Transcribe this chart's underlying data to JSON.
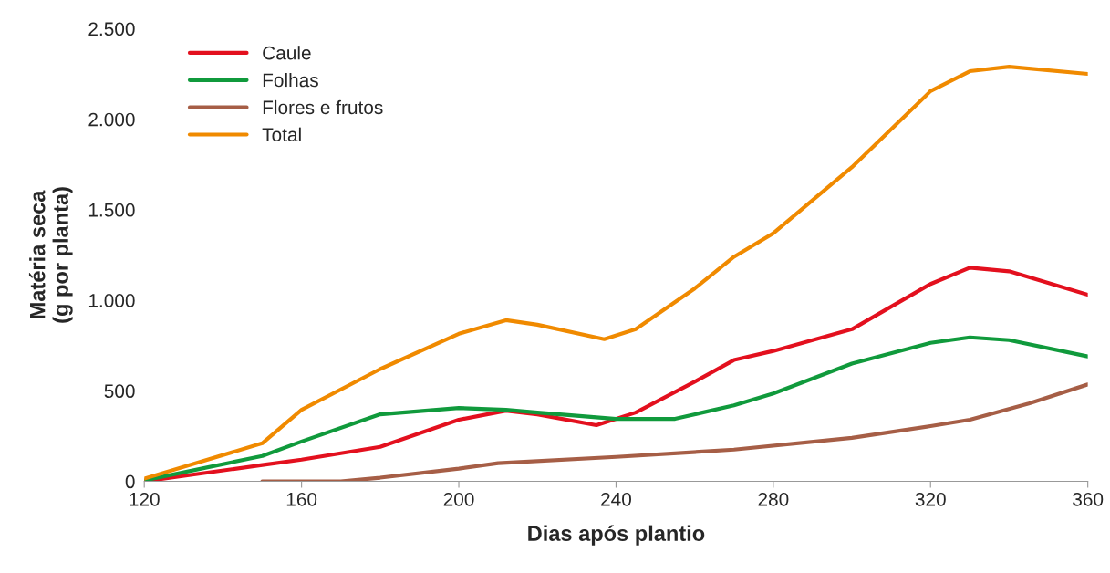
{
  "chart_data": {
    "type": "line",
    "xlabel": "Dias após plantio",
    "ylabel": "Matéria seca\n(g por planta)",
    "xlim": [
      120,
      360
    ],
    "xticks": [
      120,
      160,
      200,
      240,
      280,
      320,
      360
    ],
    "ylim": [
      0,
      2500
    ],
    "yticks": [
      0,
      {
        "value": 500,
        "label": "500"
      },
      {
        "value": 1000,
        "label": "1.000"
      },
      {
        "value": 1500,
        "label": "1.500"
      },
      {
        "value": 2000,
        "label": "2.000"
      },
      {
        "value": 2500,
        "label": "2.500"
      }
    ],
    "grid": false,
    "legend": "top left",
    "marker": "none",
    "line_style": "solid",
    "series": [
      {
        "name": "Caule",
        "color": "#e3101e",
        "x": [
          120,
          150,
          160,
          180,
          200,
          212,
          220,
          235,
          245,
          260,
          270,
          280,
          300,
          320,
          330,
          340,
          360
        ],
        "values": [
          0,
          90,
          120,
          190,
          340,
          390,
          370,
          310,
          380,
          550,
          670,
          720,
          840,
          1090,
          1180,
          1160,
          1030
        ]
      },
      {
        "name": "Folhas",
        "color": "#109a3c",
        "x": [
          120,
          150,
          160,
          180,
          200,
          212,
          220,
          240,
          255,
          270,
          280,
          300,
          320,
          330,
          340,
          360
        ],
        "values": [
          5,
          140,
          220,
          370,
          405,
          395,
          380,
          345,
          345,
          420,
          485,
          650,
          765,
          795,
          780,
          690
        ]
      },
      {
        "name": "Flores e frutos",
        "color": "#a65e46",
        "x": [
          150,
          170,
          180,
          200,
          210,
          240,
          270,
          300,
          320,
          330,
          345,
          360
        ],
        "values": [
          0,
          0,
          20,
          70,
          100,
          135,
          175,
          240,
          305,
          340,
          430,
          535
        ]
      },
      {
        "name": "Total",
        "color": "#f08a00",
        "x": [
          120,
          150,
          160,
          180,
          200,
          212,
          220,
          237,
          245,
          260,
          270,
          280,
          300,
          320,
          330,
          340,
          360
        ],
        "values": [
          15,
          210,
          395,
          620,
          815,
          890,
          865,
          785,
          840,
          1065,
          1240,
          1370,
          1735,
          2155,
          2265,
          2290,
          2250
        ]
      }
    ]
  }
}
